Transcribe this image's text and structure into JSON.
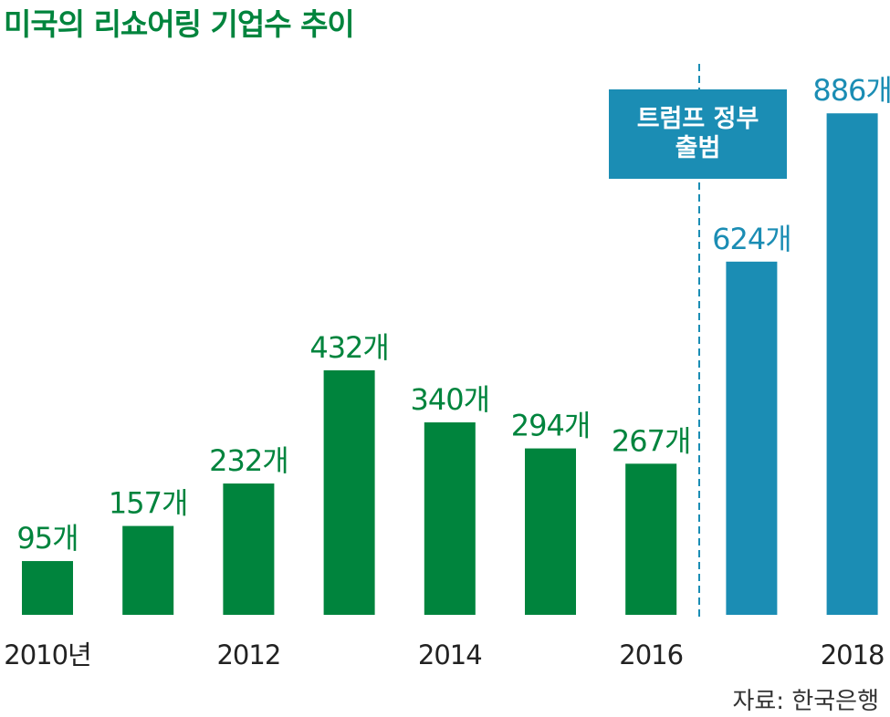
{
  "chart_data": {
    "type": "bar",
    "title": "미국의 리쇼어링 기업수 추이",
    "categories": [
      "2010",
      "2011",
      "2012",
      "2013",
      "2014",
      "2015",
      "2016",
      "2017",
      "2018"
    ],
    "x_tick_labels": [
      "2010년",
      "",
      "2012",
      "",
      "2014",
      "",
      "2016",
      "",
      "2018"
    ],
    "values": [
      95,
      157,
      232,
      432,
      340,
      294,
      267,
      624,
      886
    ],
    "value_labels": [
      "95개",
      "157개",
      "232개",
      "432개",
      "340개",
      "294개",
      "267개",
      "624개",
      "886개"
    ],
    "ylim": [
      0,
      1000
    ],
    "grid": false,
    "annotation": {
      "lines": [
        "트럼프 정부",
        "출범"
      ],
      "position": "between-2016-and-2017"
    },
    "source": "자료: 한국은행"
  },
  "colors": {
    "before": "#00843d",
    "after": "#1b8db4",
    "divider": "#1b8db4",
    "title": "#00843d"
  }
}
